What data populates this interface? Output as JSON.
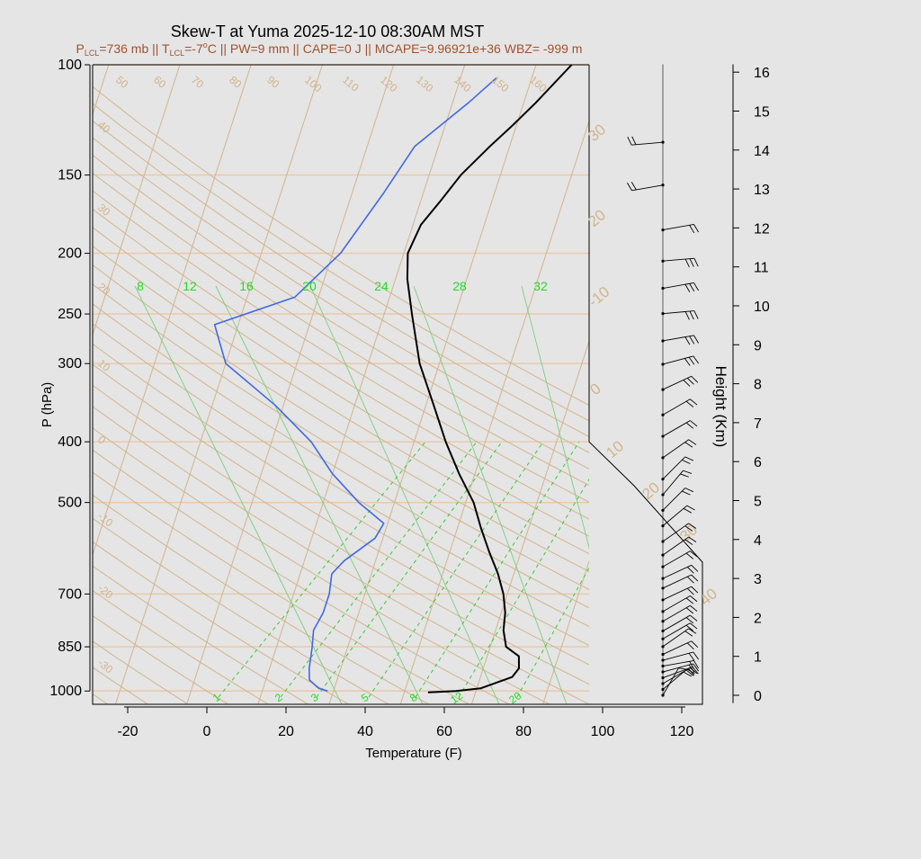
{
  "chart_data": {
    "type": "line",
    "title": "Skew-T at Yuma 2025-12-10 08:30AM MST",
    "subtitle": {
      "plcl_label": "P",
      "plcl_sub": "LCL",
      "plcl_value": "=736 mb || T",
      "tlcl_sub": "LCL",
      "tlcl_value": "=-7",
      "deg_sup": "o",
      "rest": "C || PW=9 mm || CAPE=0 J || MCAPE=9.96921e+36 WBZ= -999 m"
    },
    "xlabel": "Temperature (F)",
    "ylabel": "P (hPa)",
    "y2label": "Height (Km)",
    "x_ticks": [
      -20,
      0,
      20,
      40,
      60,
      80,
      100,
      120
    ],
    "x_tick_labels": [
      "-20",
      "0",
      "20",
      "40",
      "60",
      "80",
      "100",
      "120"
    ],
    "p_ticks": [
      100,
      150,
      200,
      250,
      300,
      400,
      500,
      700,
      850,
      1000
    ],
    "p_tick_labels": [
      "100",
      "150",
      "200",
      "250",
      "300",
      "400",
      "500",
      "700",
      "850",
      "1000"
    ],
    "height_ticks": [
      0,
      1,
      2,
      3,
      4,
      5,
      6,
      7,
      8,
      9,
      10,
      11,
      12,
      13,
      14,
      15,
      16
    ],
    "height_tick_labels": [
      "0",
      "1",
      "2",
      "3",
      "4",
      "5",
      "6",
      "7",
      "8",
      "9",
      "10",
      "11",
      "12",
      "13",
      "14",
      "15",
      "16"
    ],
    "dry_adiabat_labels": [
      "50",
      "60",
      "70",
      "80",
      "90",
      "100",
      "110",
      "120",
      "130",
      "140",
      "150",
      "160"
    ],
    "isotherm_labels_left": [
      "40",
      "30",
      "20",
      "10",
      "0",
      "-10",
      "-20",
      "-30"
    ],
    "isotherm_labels_right": [
      "30",
      "20",
      "-10",
      "0",
      "10",
      "20",
      "30",
      "40"
    ],
    "moist_adiabat_labels": [
      "8",
      "12",
      "16",
      "20",
      "24",
      "28",
      "32"
    ],
    "mixing_ratio_labels": [
      "1",
      "2",
      "3",
      "5",
      "8",
      "12",
      "20"
    ],
    "series": [
      {
        "color": "#000000",
        "x": [
          56,
          63,
          69,
          76,
          77,
          76,
          72,
          70,
          69,
          67,
          64,
          60,
          56,
          52,
          46,
          40,
          34,
          27,
          21,
          17,
          15,
          16,
          19,
          22,
          27,
          31,
          35,
          41
        ],
        "y": [
          1005,
          1000,
          990,
          950,
          920,
          880,
          850,
          800,
          750,
          700,
          650,
          600,
          550,
          500,
          450,
          400,
          350,
          300,
          250,
          220,
          200,
          180,
          165,
          150,
          135,
          125,
          115,
          100
        ]
      },
      {
        "color": "#4169e1",
        "x": [
          30.5,
          28,
          25,
          24,
          23,
          22,
          23,
          23,
          22,
          24,
          30,
          31,
          23,
          14,
          6,
          -6,
          -22,
          -28,
          -10,
          -2,
          4,
          8,
          18,
          23
        ],
        "y": [
          1000,
          990,
          960,
          920,
          850,
          800,
          750,
          700,
          650,
          620,
          570,
          540,
          500,
          450,
          400,
          350,
          300,
          260,
          235,
          200,
          160,
          135,
          115,
          105
        ]
      }
    ],
    "wind_barbs": [
      {
        "h": 0.0,
        "dir": 210,
        "spd": 10
      },
      {
        "h": 0.15,
        "dir": 230,
        "spd": 15
      },
      {
        "h": 0.3,
        "dir": 240,
        "spd": 15
      },
      {
        "h": 0.45,
        "dir": 250,
        "spd": 15
      },
      {
        "h": 0.6,
        "dir": 255,
        "spd": 15
      },
      {
        "h": 0.75,
        "dir": 260,
        "spd": 15
      },
      {
        "h": 0.9,
        "dir": 255,
        "spd": 15
      },
      {
        "h": 1.05,
        "dir": 245,
        "spd": 15
      },
      {
        "h": 1.25,
        "dir": 235,
        "spd": 15
      },
      {
        "h": 1.45,
        "dir": 240,
        "spd": 15
      },
      {
        "h": 1.65,
        "dir": 240,
        "spd": 15
      },
      {
        "h": 1.9,
        "dir": 240,
        "spd": 15
      },
      {
        "h": 2.15,
        "dir": 240,
        "spd": 15
      },
      {
        "h": 2.45,
        "dir": 245,
        "spd": 15
      },
      {
        "h": 2.75,
        "dir": 245,
        "spd": 15
      },
      {
        "h": 3.0,
        "dir": 245,
        "spd": 20
      },
      {
        "h": 3.3,
        "dir": 240,
        "spd": 20
      },
      {
        "h": 3.6,
        "dir": 235,
        "spd": 20
      },
      {
        "h": 3.95,
        "dir": 235,
        "spd": 20
      },
      {
        "h": 4.35,
        "dir": 230,
        "spd": 20
      },
      {
        "h": 4.75,
        "dir": 225,
        "spd": 20
      },
      {
        "h": 5.15,
        "dir": 220,
        "spd": 15
      },
      {
        "h": 5.55,
        "dir": 225,
        "spd": 20
      },
      {
        "h": 6.1,
        "dir": 235,
        "spd": 20
      },
      {
        "h": 6.65,
        "dir": 240,
        "spd": 20
      },
      {
        "h": 7.2,
        "dir": 240,
        "spd": 20
      },
      {
        "h": 7.85,
        "dir": 245,
        "spd": 25
      },
      {
        "h": 8.5,
        "dir": 255,
        "spd": 25
      },
      {
        "h": 9.1,
        "dir": 260,
        "spd": 30
      },
      {
        "h": 9.8,
        "dir": 265,
        "spd": 30
      },
      {
        "h": 10.45,
        "dir": 260,
        "spd": 25
      },
      {
        "h": 11.15,
        "dir": 265,
        "spd": 25
      },
      {
        "h": 11.95,
        "dir": 260,
        "spd": 15
      },
      {
        "h": 13.1,
        "dir": 80,
        "spd": 20
      },
      {
        "h": 14.2,
        "dir": 85,
        "spd": 20
      }
    ]
  }
}
